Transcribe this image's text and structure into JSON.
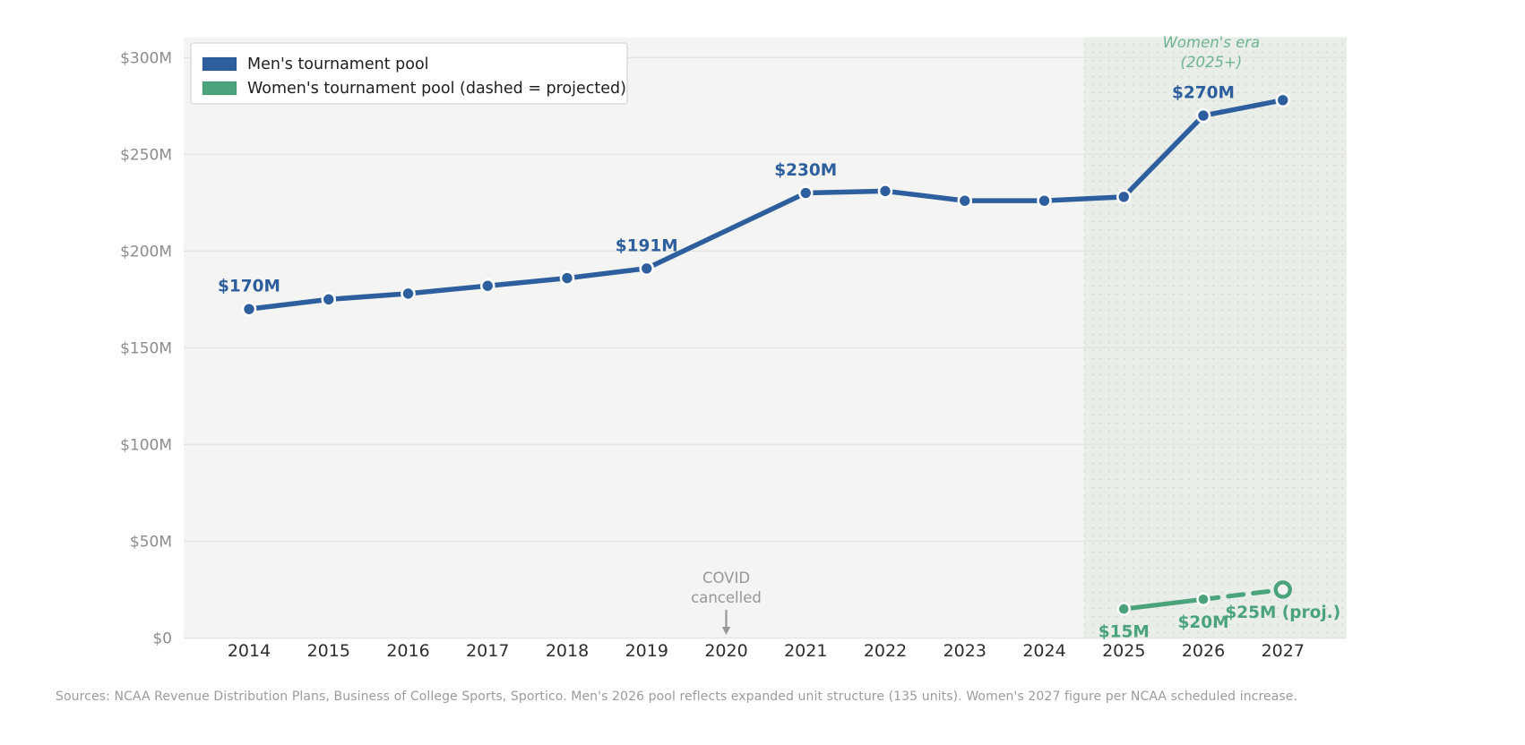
{
  "chart_data": {
    "type": "line",
    "title": "",
    "xlabel": "",
    "ylabel": "",
    "x": [
      2014,
      2015,
      2016,
      2017,
      2018,
      2019,
      2020,
      2021,
      2022,
      2023,
      2024,
      2025,
      2026,
      2027
    ],
    "ylim": [
      0,
      311
    ],
    "yticks": [
      0,
      50,
      100,
      150,
      200,
      250,
      300
    ],
    "ytick_labels": [
      "$0",
      "$50M",
      "$100M",
      "$150M",
      "$200M",
      "$250M",
      "$300M"
    ],
    "grid": "horizontal",
    "legend_position": "upper-left",
    "series": [
      {
        "name": "Men's tournament pool",
        "color": "#2d5f9e",
        "style": "solid",
        "marker": "filled-circle",
        "values": [
          170,
          175,
          178,
          182,
          186,
          191,
          null,
          230,
          231,
          226,
          226,
          228,
          270,
          278
        ],
        "gap_note": "2020 value missing (COVID cancelled)"
      },
      {
        "name": "Women's tournament pool (dashed = projected)",
        "color": "#4aa37a",
        "style": "solid-then-dashed",
        "solid_through_year": 2026,
        "projected_year": 2027,
        "open_marker_year": 2027,
        "values": [
          null,
          null,
          null,
          null,
          null,
          null,
          null,
          null,
          null,
          null,
          null,
          15,
          20,
          25
        ]
      }
    ],
    "point_labels": [
      {
        "series": 0,
        "year": 2014,
        "text": "$170M",
        "placement": "above"
      },
      {
        "series": 0,
        "year": 2019,
        "text": "$191M",
        "placement": "above"
      },
      {
        "series": 0,
        "year": 2021,
        "text": "$230M",
        "placement": "above"
      },
      {
        "series": 0,
        "year": 2026,
        "text": "$270M",
        "placement": "above"
      },
      {
        "series": 1,
        "year": 2025,
        "text": "$15M",
        "placement": "below"
      },
      {
        "series": 1,
        "year": 2026,
        "text": "$20M",
        "placement": "below"
      },
      {
        "series": 1,
        "year": 2027,
        "text": "$25M (proj.)",
        "placement": "below"
      }
    ],
    "annotations": {
      "covid": {
        "lines": [
          "COVID",
          "cancelled"
        ],
        "year": 2020,
        "arrow": "down",
        "color": "#979797"
      },
      "era_label": {
        "lines": [
          "Women's era",
          "(2025+)"
        ],
        "center_year": 2026.1,
        "color": "#6fb58f"
      },
      "era_shade": {
        "from_year": 2024.5,
        "to_year": "right-edge",
        "tint": "rgba(104,168,131,0.07)"
      }
    },
    "colors": {
      "plot_bg": "#f4f4f2",
      "grid": "#e4e4e1",
      "x_tick": "#2e2e2e",
      "y_tick": "#8c8c8c",
      "legend_border": "#dcdcd9",
      "legend_bg": "#ffffff",
      "legend_text": "#1f1f1f",
      "marker_ring": "#ffffff",
      "open_marker_fill": "#f3f4f1"
    }
  },
  "legend": {
    "items": [
      {
        "label": "Men's tournament pool",
        "color": "#2d5f9e"
      },
      {
        "label": "Women's tournament pool (dashed = projected)",
        "color": "#4aa37a"
      }
    ]
  },
  "source_note": "Sources: NCAA Revenue Distribution Plans, Business of College Sports, Sportico. Men's 2026 pool reflects expanded unit structure (135 units). Women's 2027 figure per NCAA scheduled increase."
}
